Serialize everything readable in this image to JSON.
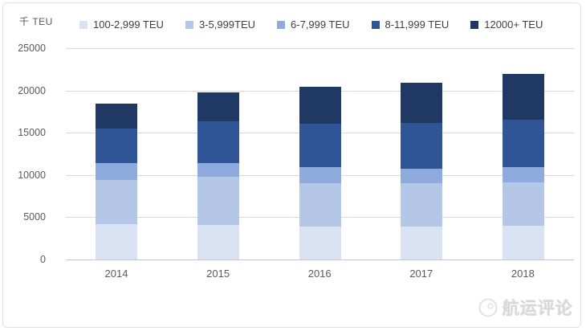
{
  "chart_data": {
    "type": "bar",
    "stacked": true,
    "unit_label": "千 TEU",
    "categories": [
      "2014",
      "2015",
      "2016",
      "2017",
      "2018"
    ],
    "series": [
      {
        "name": "100-2,999 TEU",
        "color": "#dae3f3",
        "values": [
          4200,
          4100,
          3900,
          3900,
          4000
        ]
      },
      {
        "name": "3-5,999TEU",
        "color": "#b4c7e7",
        "values": [
          5200,
          5700,
          5100,
          5100,
          5100
        ]
      },
      {
        "name": "6-7,999 TEU",
        "color": "#8faadc",
        "values": [
          2000,
          1600,
          1900,
          1700,
          1800
        ]
      },
      {
        "name": "8-11,999 TEU",
        "color": "#2f5597",
        "values": [
          4100,
          5000,
          5200,
          5500,
          5600
        ]
      },
      {
        "name": "12000+ TEU",
        "color": "#1f3864",
        "values": [
          2900,
          3400,
          4300,
          4700,
          5500
        ]
      }
    ],
    "totals": [
      18400,
      19800,
      20400,
      20900,
      22000
    ],
    "ylim": [
      0,
      25000
    ],
    "yticks": [
      25000,
      20000,
      15000,
      10000,
      5000,
      0
    ],
    "grid": true,
    "legend_position": "top",
    "xlabel": "",
    "ylabel": "千 TEU"
  },
  "watermark": {
    "text": "航运评论"
  }
}
